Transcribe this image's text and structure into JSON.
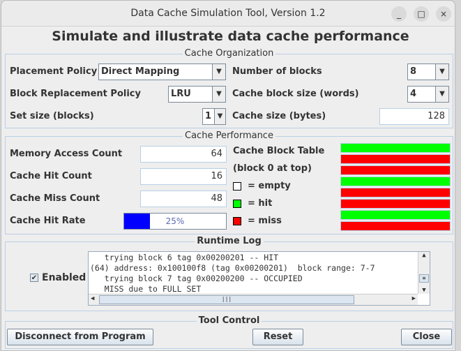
{
  "window": {
    "title": "Data Cache Simulation Tool, Version 1.2",
    "minimize": "_",
    "maximize": "□",
    "close": "×"
  },
  "heading": "Simulate and illustrate data cache performance",
  "organization": {
    "title": "Cache Organization",
    "placement_label": "Placement Policy",
    "placement_value": "Direct Mapping",
    "replacement_label": "Block Replacement Policy",
    "replacement_value": "LRU",
    "set_size_label": "Set size (blocks)",
    "set_size_value": "1",
    "num_blocks_label": "Number of blocks",
    "num_blocks_value": "8",
    "block_size_label": "Cache block size (words)",
    "block_size_value": "4",
    "cache_size_label": "Cache size (bytes)",
    "cache_size_value": "128"
  },
  "performance": {
    "title": "Cache Performance",
    "access_label": "Memory Access Count",
    "access_value": "64",
    "hit_label": "Cache Hit Count",
    "hit_value": "16",
    "miss_label": "Cache Miss Count",
    "miss_value": "48",
    "rate_label": "Cache Hit Rate",
    "rate_value": "25%",
    "rate_percent": 25,
    "table_label": "Cache Block Table",
    "table_sub": "(block 0 at top)",
    "legend_empty": "= empty",
    "legend_hit": "= hit",
    "legend_miss": "= miss",
    "blocks": [
      "hit",
      "miss",
      "miss",
      "hit",
      "miss",
      "miss",
      "hit",
      "miss"
    ],
    "colors": {
      "empty": "#ffffff",
      "hit": "#00ff00",
      "miss": "#ff0000",
      "rate_fill": "#0000ff"
    }
  },
  "log": {
    "title": "Runtime Log",
    "enabled_label": "Enabled",
    "enabled": true,
    "text": "   trying block 6 tag 0x00200201 -- HIT\n(64) address: 0x100100f8 (tag 0x00200201)  block range: 7-7\n   trying block 7 tag 0x00200200 -- OCCUPIED\n   MISS due to FULL SET"
  },
  "control": {
    "title": "Tool Control",
    "disconnect": "Disconnect from Program",
    "reset": "Reset",
    "close": "Close"
  }
}
